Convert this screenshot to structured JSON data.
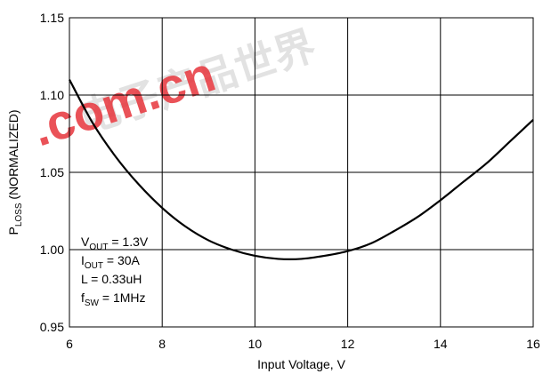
{
  "chart_data": {
    "type": "line",
    "title": "",
    "xlabel": "Input Voltage, V",
    "ylabel": {
      "main": "P",
      "sub": "LOSS",
      "suffix": " (NORMALIZED)"
    },
    "xlim": [
      6,
      16
    ],
    "ylim": [
      0.95,
      1.15
    ],
    "xticks": [
      6,
      8,
      10,
      12,
      14,
      16
    ],
    "yticks": [
      "0.95",
      "1.00",
      "1.05",
      "1.10",
      "1.15"
    ],
    "grid": true,
    "legend": "none",
    "line_color": "#000000",
    "series": [
      {
        "x": [
          6.0,
          6.5,
          7.0,
          7.5,
          8.0,
          8.5,
          9.0,
          9.5,
          10.0,
          10.5,
          11.0,
          11.5,
          12.0,
          12.5,
          13.0,
          13.5,
          14.0,
          14.5,
          15.0,
          15.5,
          16.0
        ],
        "y": [
          1.11,
          1.082,
          1.06,
          1.042,
          1.027,
          1.015,
          1.006,
          1.0,
          0.996,
          0.994,
          0.994,
          0.996,
          0.999,
          1.004,
          1.012,
          1.021,
          1.032,
          1.044,
          1.056,
          1.07,
          1.084
        ]
      }
    ],
    "annotations": [
      {
        "main": "V",
        "sub": "OUT",
        "rest": " = 1.3V"
      },
      {
        "main": "I",
        "sub": "OUT",
        "rest": " = 30A"
      },
      {
        "main": "L = 0.33uH",
        "sub": "",
        "rest": ""
      },
      {
        "main": "f",
        "sub": "SW",
        "rest": " = 1MHz"
      }
    ]
  },
  "watermark": {
    "cjk": "电子产品世界",
    "latin": ".com.cn",
    "color": "#e41e26"
  }
}
